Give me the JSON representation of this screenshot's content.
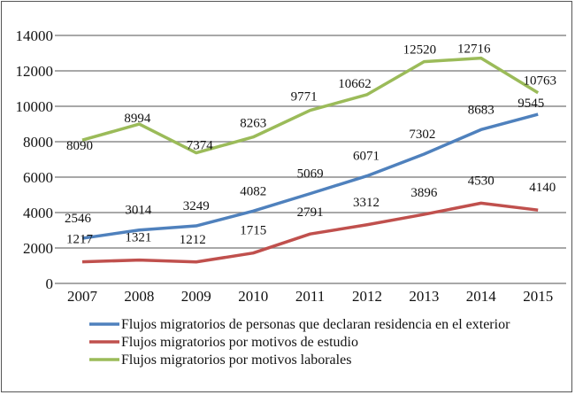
{
  "chart_data": {
    "type": "line",
    "title": "",
    "xlabel": "",
    "ylabel": "",
    "categories": [
      "2007",
      "2008",
      "2009",
      "2010",
      "2011",
      "2012",
      "2013",
      "2014",
      "2015"
    ],
    "ylim": [
      0,
      14000
    ],
    "yticks": [
      0,
      2000,
      4000,
      6000,
      8000,
      10000,
      12000,
      14000
    ],
    "ytick_labels": [
      "0",
      "2000",
      "4000",
      "6000",
      "8000",
      "10000",
      "12000",
      "14000"
    ],
    "grid": true,
    "legend_position": "bottom",
    "series": [
      {
        "name": "Flujos migratorios de personas que declaran residencia en el exterior",
        "color": "#4f81bd",
        "values": [
          2546,
          3014,
          3249,
          4082,
          5069,
          6071,
          7302,
          8683,
          9545
        ]
      },
      {
        "name": "Flujos migratorios por motivos de estudio",
        "color": "#c0504d",
        "values": [
          1217,
          1321,
          1212,
          1715,
          2791,
          3312,
          3896,
          4530,
          4140
        ]
      },
      {
        "name": "Flujos migratorios por motivos laborales",
        "color": "#9bbb59",
        "values": [
          8090,
          8994,
          7374,
          8263,
          9771,
          10662,
          12520,
          12716,
          10763
        ]
      }
    ]
  }
}
